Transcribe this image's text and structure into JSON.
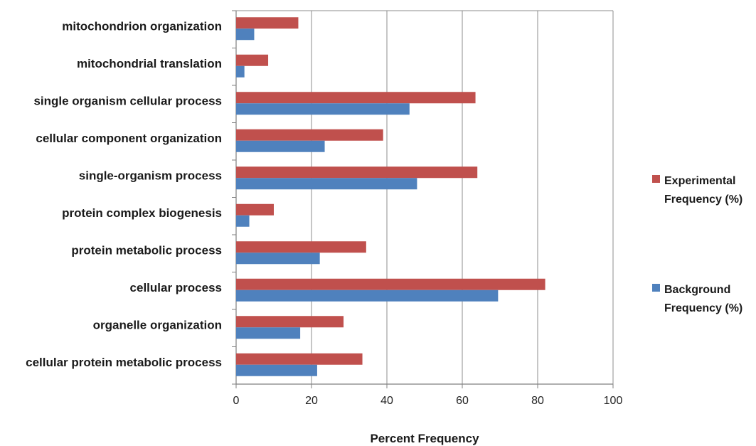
{
  "chart_data": {
    "type": "bar",
    "orientation": "horizontal",
    "categories": [
      "mitochondrion organization",
      "mitochondrial translation",
      "single organism cellular process",
      "cellular component organization",
      "single-organism process",
      "protein complex biogenesis",
      "protein metabolic process",
      "cellular process",
      "organelle organization",
      "cellular protein metabolic process"
    ],
    "series": [
      {
        "name": "Experimental Frequency (%)",
        "legend_lines": [
          "Experimental",
          "Frequency (%)"
        ],
        "color": "#c0504d",
        "values": [
          16.5,
          8.5,
          63.5,
          39,
          64,
          10,
          34.5,
          82,
          28.5,
          33.5
        ]
      },
      {
        "name": "Background Frequency (%)",
        "legend_lines": [
          "Background",
          "Frequency (%)"
        ],
        "color": "#4f81bd",
        "values": [
          4.8,
          2.2,
          46,
          23.5,
          48,
          3.5,
          22.2,
          69.5,
          17,
          21.5
        ]
      }
    ],
    "xlabel": "Percent Frequency",
    "ylabel": "",
    "xlim": [
      0,
      100
    ],
    "xticks": [
      "0",
      "20",
      "40",
      "60",
      "80",
      "100"
    ],
    "grid": "vertical",
    "legend_position": "right"
  }
}
